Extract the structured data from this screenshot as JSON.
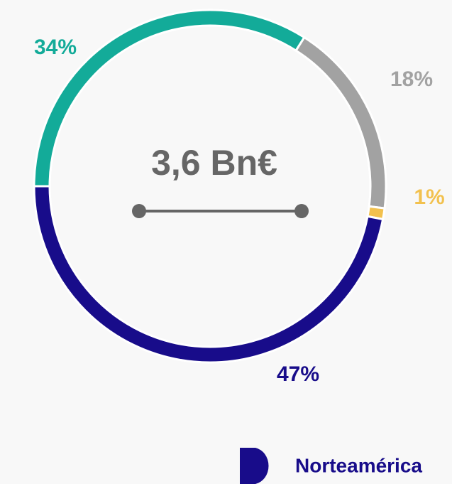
{
  "chart_data": {
    "type": "donut",
    "center_label": "3,6 Bn€",
    "categories": [
      null,
      null,
      null,
      "Norteamérica"
    ],
    "values": [
      34,
      18,
      1,
      47
    ],
    "value_labels": [
      "34%",
      "18%",
      "1%",
      "47%"
    ],
    "colors": [
      "#13ab99",
      "#a2a2a2",
      "#f2c14e",
      "#180c8a"
    ]
  }
}
